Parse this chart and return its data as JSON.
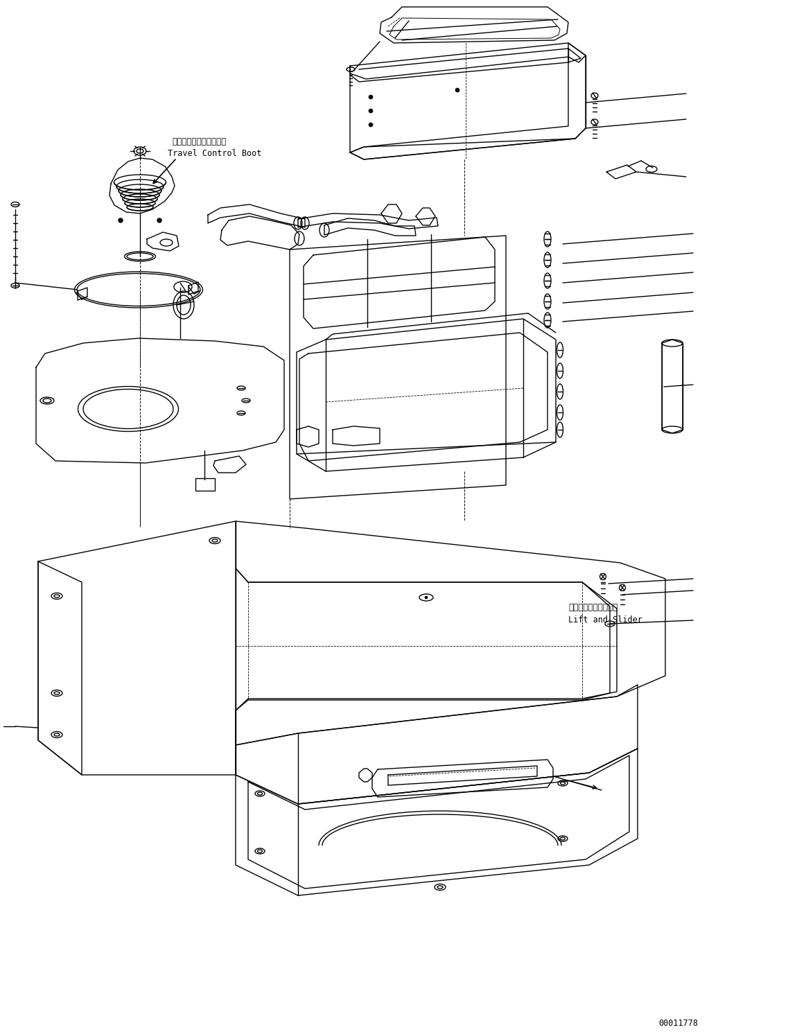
{
  "figsize": [
    11.37,
    14.89
  ],
  "dpi": 100,
  "bg_color": "#ffffff",
  "label_tcb_jp": "走行コントロールブート",
  "label_tcb_en": "Travel Control Boot",
  "label_ls_jp": "リフトおよびスライダ",
  "label_ls_en": "Lift and Slider",
  "diagram_id": "00011778",
  "lc": "#000000",
  "lw": 1.0,
  "fs": 8.5,
  "ff": "monospace"
}
